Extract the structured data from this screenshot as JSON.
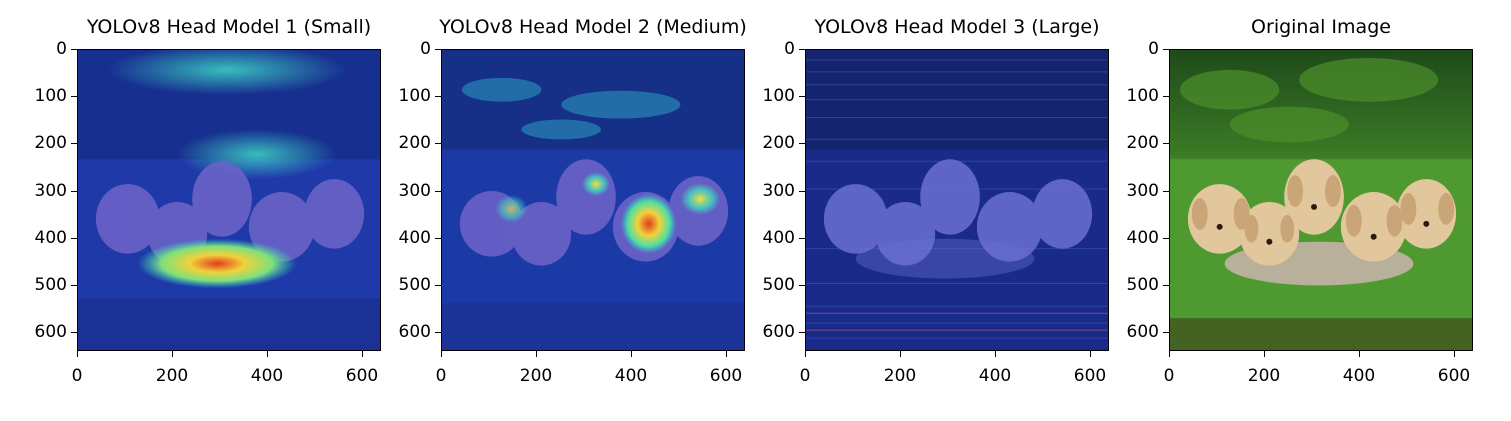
{
  "panels": [
    {
      "title": "YOLOv8 Head Model 1 (Small)",
      "kind": "heatmap-small"
    },
    {
      "title": "YOLOv8 Head Model 2 (Medium)",
      "kind": "heatmap-medium"
    },
    {
      "title": "YOLOv8 Head Model 3 (Large)",
      "kind": "heatmap-large"
    },
    {
      "title": "Original Image",
      "kind": "original"
    }
  ],
  "axes": {
    "yticks": [
      "0",
      "100",
      "200",
      "300",
      "400",
      "500",
      "600"
    ],
    "xticks": [
      "0",
      "200",
      "400",
      "600"
    ],
    "ytick_values": [
      0,
      100,
      200,
      300,
      400,
      500,
      600
    ],
    "xtick_values": [
      0,
      200,
      400,
      600
    ],
    "range": [
      0,
      640
    ]
  },
  "colors": {
    "heat_low": "#1a2a8c",
    "heat_mid": "#2fd3c8",
    "heat_high": "#e33b1c",
    "grass": "#3f8f2a",
    "forest": "#2f6a1f",
    "puppy": "#e2c79c"
  }
}
